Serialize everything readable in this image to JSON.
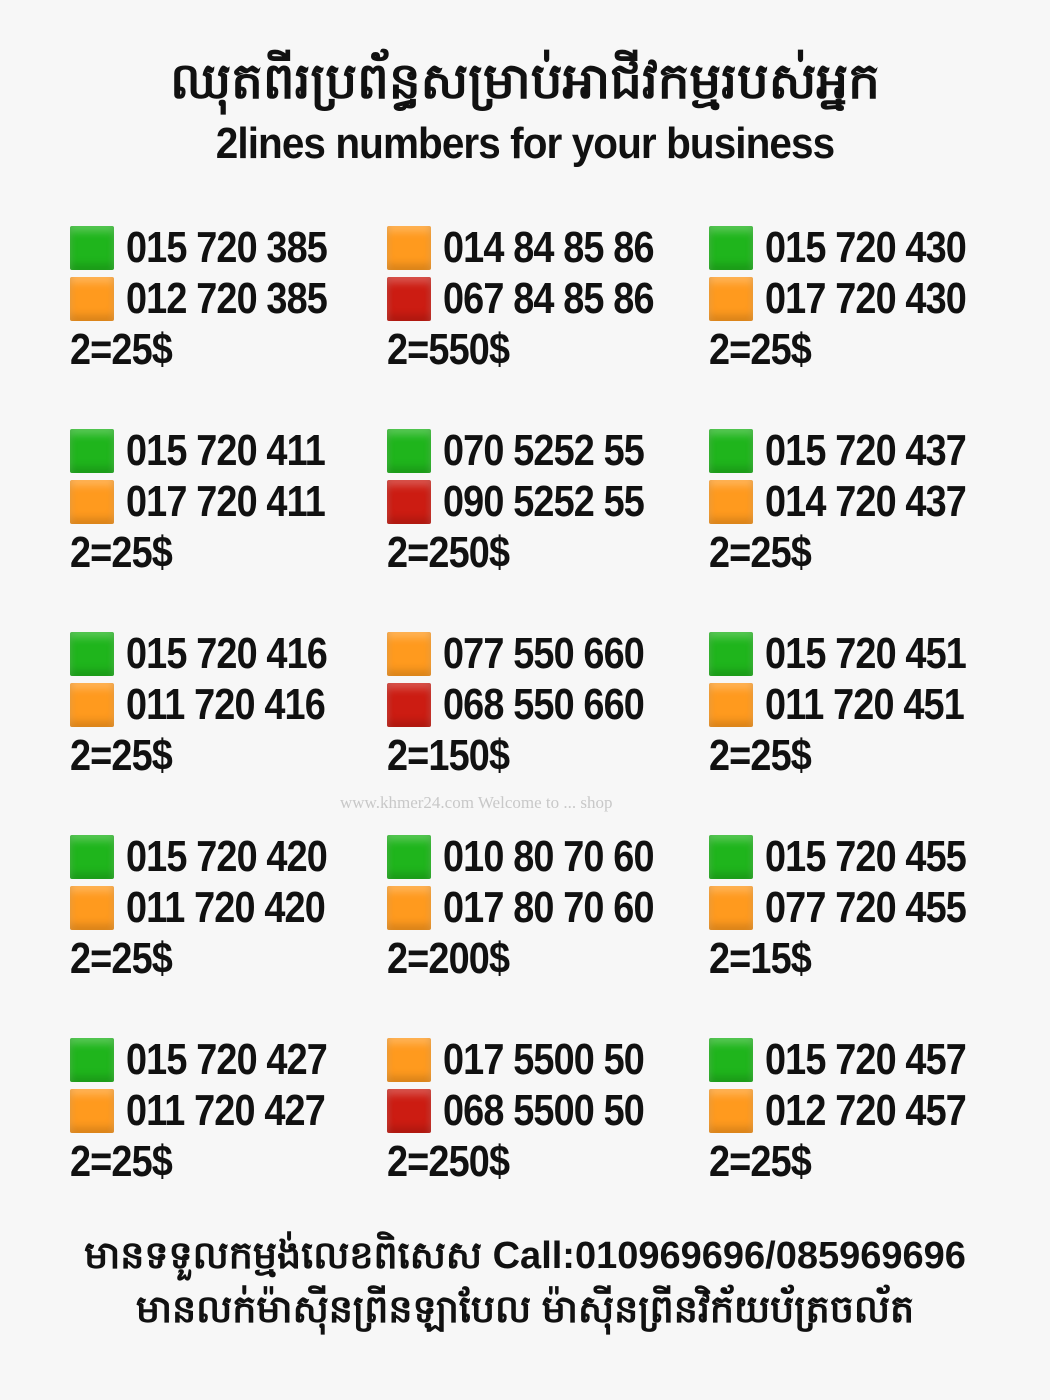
{
  "header": {
    "title_khmer": "ឈុតពីរប្រព័ន្ធសម្រាប់អាជីវកម្មរបស់អ្នក",
    "title_english": "2lines numbers for your business"
  },
  "colors": {
    "green": "#1fb51c",
    "orange": "#ff9a1e",
    "red": "#cc1c12"
  },
  "sets": [
    {
      "lines": [
        {
          "number": "015 720 385",
          "color": "green"
        },
        {
          "number": "012 720 385",
          "color": "orange"
        }
      ],
      "price": "2=25$"
    },
    {
      "lines": [
        {
          "number": "014 84 85 86",
          "color": "orange"
        },
        {
          "number": "067 84 85 86",
          "color": "red"
        }
      ],
      "price": "2=550$"
    },
    {
      "lines": [
        {
          "number": "015 720 430",
          "color": "green"
        },
        {
          "number": "017 720 430",
          "color": "orange"
        }
      ],
      "price": "2=25$"
    },
    {
      "lines": [
        {
          "number": "015 720 411",
          "color": "green"
        },
        {
          "number": "017 720 411",
          "color": "orange"
        }
      ],
      "price": "2=25$"
    },
    {
      "lines": [
        {
          "number": "070 5252 55",
          "color": "green"
        },
        {
          "number": "090 5252 55",
          "color": "red"
        }
      ],
      "price": "2=250$"
    },
    {
      "lines": [
        {
          "number": "015 720 437",
          "color": "green"
        },
        {
          "number": "014 720 437",
          "color": "orange"
        }
      ],
      "price": "2=25$"
    },
    {
      "lines": [
        {
          "number": "015 720 416",
          "color": "green"
        },
        {
          "number": "011 720 416",
          "color": "orange"
        }
      ],
      "price": "2=25$"
    },
    {
      "lines": [
        {
          "number": "077 550 660",
          "color": "orange"
        },
        {
          "number": "068 550 660",
          "color": "red"
        }
      ],
      "price": "2=150$"
    },
    {
      "lines": [
        {
          "number": "015 720 451",
          "color": "green"
        },
        {
          "number": "011 720 451",
          "color": "orange"
        }
      ],
      "price": "2=25$"
    },
    {
      "lines": [
        {
          "number": "015 720 420",
          "color": "green"
        },
        {
          "number": "011 720 420",
          "color": "orange"
        }
      ],
      "price": "2=25$"
    },
    {
      "lines": [
        {
          "number": "010 80 70 60",
          "color": "green"
        },
        {
          "number": "017 80 70 60",
          "color": "orange"
        }
      ],
      "price": "2=200$"
    },
    {
      "lines": [
        {
          "number": "015 720 455",
          "color": "green"
        },
        {
          "number": "077 720 455",
          "color": "orange"
        }
      ],
      "price": "2=15$"
    },
    {
      "lines": [
        {
          "number": "015 720 427",
          "color": "green"
        },
        {
          "number": "011 720 427",
          "color": "orange"
        }
      ],
      "price": "2=25$"
    },
    {
      "lines": [
        {
          "number": "017 5500 50",
          "color": "orange"
        },
        {
          "number": "068 5500 50",
          "color": "red"
        }
      ],
      "price": "2=250$"
    },
    {
      "lines": [
        {
          "number": "015 720 457",
          "color": "green"
        },
        {
          "number": "012 720 457",
          "color": "orange"
        }
      ],
      "price": "2=25$"
    }
  ],
  "watermark": "www.khmer24.com Welcome to ... shop",
  "footer": {
    "line1": "មានទទួលកម្មង់លេខពិសេស Call:010969696/085969696",
    "line2": "មានលក់ម៉ាស៊ីនព្រីនឡាបែល ម៉ាស៊ីនព្រីនវិក័យប័ត្រចល័ត"
  }
}
